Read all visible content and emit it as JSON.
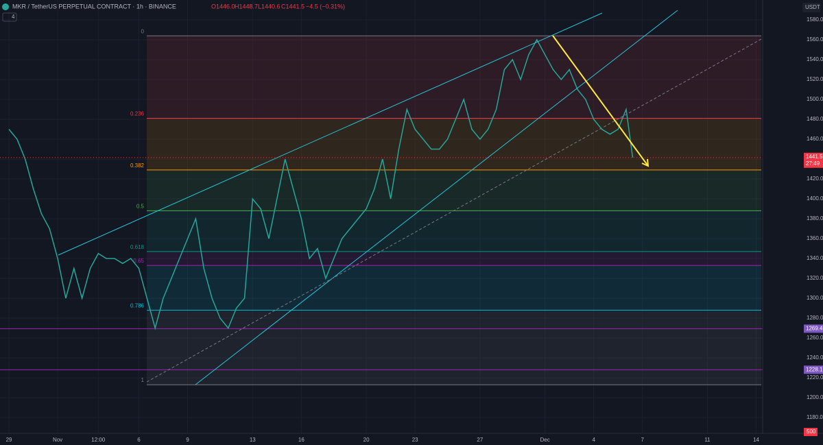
{
  "header": {
    "symbol": "MKR / TetherUS PERPETUAL CONTRACT · 1h · BINANCE",
    "open": "O1446.0",
    "high": "H1448.7",
    "low": "L1440.6",
    "close": "C1441.5",
    "change": "−4.5 (−0.31%)",
    "indicators": "4",
    "currency": "USDT",
    "volume_label": "500"
  },
  "chart_data": {
    "type": "line",
    "color": "#26a69a",
    "x": [
      0,
      0.5,
      1,
      1.5,
      2,
      2.5,
      3,
      3.5,
      4,
      4.5,
      5,
      5.5,
      6,
      6.5,
      7,
      7.5,
      8,
      8.5,
      9,
      9.5,
      10,
      10.5,
      11,
      11.5,
      12,
      12.5,
      13,
      13.5,
      14,
      14.5,
      15,
      15.5,
      16,
      16.5,
      17,
      17.5,
      18,
      18.5,
      19,
      19.5,
      20,
      20.5,
      21,
      21.5,
      22,
      22.5,
      23,
      23.5,
      24,
      24.5,
      25,
      25.5,
      26,
      26.5,
      27,
      27.5,
      28,
      28.5,
      29,
      29.5,
      30,
      30.5,
      31,
      31.5,
      32,
      32.5,
      33,
      33.5,
      34,
      34.5,
      35,
      35.5,
      36,
      36.5,
      37,
      37.5,
      38,
      38.4
    ],
    "values": [
      1470,
      1460,
      1440,
      1410,
      1385,
      1370,
      1340,
      1300,
      1330,
      1300,
      1330,
      1345,
      1340,
      1340,
      1335,
      1340,
      1330,
      1300,
      1270,
      1300,
      1320,
      1340,
      1360,
      1380,
      1330,
      1300,
      1280,
      1270,
      1290,
      1300,
      1400,
      1390,
      1360,
      1400,
      1440,
      1410,
      1380,
      1340,
      1350,
      1320,
      1340,
      1360,
      1370,
      1380,
      1390,
      1410,
      1440,
      1400,
      1450,
      1490,
      1470,
      1460,
      1450,
      1450,
      1460,
      1480,
      1500,
      1470,
      1460,
      1470,
      1490,
      1530,
      1540,
      1520,
      1545,
      1560,
      1545,
      1530,
      1520,
      1530,
      1510,
      1500,
      1480,
      1470,
      1465,
      1470,
      1490,
      1441.5
    ],
    "last_price": {
      "value": 1441.5,
      "label": "1441.5"
    },
    "countdown": "27:49",
    "levels": [
      {
        "value": 1269.4,
        "label": "1269.4"
      },
      {
        "value": 1228.1,
        "label": "1228.1"
      }
    ],
    "fib": [
      {
        "value": 1564,
        "label": "0",
        "color": "#787b86"
      },
      {
        "value": 1481,
        "label": "0.236",
        "color": "#f23645"
      },
      {
        "value": 1429,
        "label": "0.382",
        "color": "#ff9800"
      },
      {
        "value": 1388,
        "label": "0.5",
        "color": "#4caf50"
      },
      {
        "value": 1347,
        "label": "0.618",
        "color": "#089981"
      },
      {
        "value": 1333,
        "label": "0.65",
        "color": "#9c27b0"
      },
      {
        "value": 1288,
        "label": "0.786",
        "color": "#00bcd4"
      },
      {
        "value": 1213,
        "label": "1",
        "color": "#787b86"
      }
    ],
    "xlim": [
      -0.55,
      46.4
    ],
    "ylim": [
      1164.1,
      1600
    ],
    "xticks": [
      {
        "value": 0,
        "label": "29"
      },
      {
        "value": 3,
        "label": "Nov"
      },
      {
        "value": 5.5,
        "label": "12:00"
      },
      {
        "value": 8,
        "label": "6"
      },
      {
        "value": 11,
        "label": "9"
      },
      {
        "value": 15,
        "label": "13"
      },
      {
        "value": 18,
        "label": "16"
      },
      {
        "value": 22,
        "label": "20"
      },
      {
        "value": 25,
        "label": "23"
      },
      {
        "value": 29,
        "label": "27"
      },
      {
        "value": 33,
        "label": "Dec"
      },
      {
        "value": 36,
        "label": "4"
      },
      {
        "value": 39,
        "label": "7"
      },
      {
        "value": 43,
        "label": "11"
      },
      {
        "value": 46,
        "label": "14"
      }
    ],
    "yticks": [
      {
        "value": 1180,
        "label": "1180.0"
      },
      {
        "value": 1200,
        "label": "1200.0"
      },
      {
        "value": 1220,
        "label": "1220.0"
      },
      {
        "value": 1240,
        "label": "1240.0"
      },
      {
        "value": 1260,
        "label": "1260.0"
      },
      {
        "value": 1280,
        "label": "1280.0"
      },
      {
        "value": 1300,
        "label": "1300.0"
      },
      {
        "value": 1320,
        "label": "1320.0"
      },
      {
        "value": 1340,
        "label": "1340.0"
      },
      {
        "value": 1360,
        "label": "1360.0"
      },
      {
        "value": 1380,
        "label": "1380.0"
      },
      {
        "value": 1400,
        "label": "1400.0"
      },
      {
        "value": 1420,
        "label": "1420.0"
      },
      {
        "value": 1440,
        "label": "1440.0"
      },
      {
        "value": 1460,
        "label": "1460.0"
      },
      {
        "value": 1480,
        "label": "1480.0"
      },
      {
        "value": 1500,
        "label": "1500.0"
      },
      {
        "value": 1520,
        "label": "1520.0"
      },
      {
        "value": 1540,
        "label": "1540.0"
      },
      {
        "value": 1560,
        "label": "1560.0"
      },
      {
        "value": 1580,
        "label": "1580.0"
      }
    ],
    "grid": true
  }
}
